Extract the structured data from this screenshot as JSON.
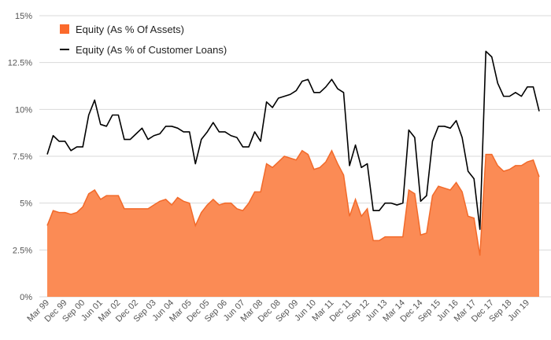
{
  "chart_data": {
    "type": "area",
    "y_ticks": [
      "0%",
      "2.5%",
      "5%",
      "7.5%",
      "10%",
      "12.5%",
      "15%"
    ],
    "y_tick_values": [
      0,
      2.5,
      5,
      7.5,
      10,
      12.5,
      15
    ],
    "ylim": [
      0,
      15
    ],
    "x_labels": [
      "Mar 99",
      "Dec 99",
      "Sep 00",
      "Jun 01",
      "Mar 02",
      "Dec 02",
      "Sep 03",
      "Jun 04",
      "Mar 05",
      "Dec 05",
      "Sep 06",
      "Jun 07",
      "Mar 08",
      "Dec 08",
      "Sep 09",
      "Jun 10",
      "Mar 11",
      "Dec 11",
      "Sep 12",
      "Jun 13",
      "Mar 14",
      "Dec 14",
      "Sep 15",
      "Jun 16",
      "Mar 17",
      "Dec 17",
      "Sep 18",
      "Jun 19"
    ],
    "series": [
      {
        "name": "Equity (As % Of Assets)",
        "kind": "area",
        "color": "#fb8b55",
        "values": [
          3.8,
          4.6,
          4.5,
          4.5,
          4.4,
          4.5,
          4.8,
          5.5,
          5.7,
          5.2,
          5.4,
          5.4,
          5.4,
          4.7,
          4.7,
          4.7,
          4.7,
          4.7,
          4.9,
          5.1,
          5.2,
          4.9,
          5.3,
          5.1,
          5.0,
          3.8,
          4.5,
          4.9,
          5.2,
          4.9,
          5.0,
          5.0,
          4.7,
          4.6,
          5.0,
          5.6,
          5.6,
          7.1,
          6.9,
          7.2,
          7.5,
          7.4,
          7.3,
          7.8,
          7.6,
          6.8,
          6.9,
          7.2,
          7.8,
          7.1,
          6.5,
          4.3,
          5.2,
          4.3,
          4.7,
          3.0,
          3.0,
          3.2,
          3.2,
          3.2,
          3.2,
          5.7,
          5.5,
          3.3,
          3.4,
          5.4,
          5.9,
          5.8,
          5.7,
          6.1,
          5.6,
          4.3,
          4.2,
          2.2,
          7.6,
          7.6,
          7.0,
          6.7,
          6.8,
          7.0,
          7.0,
          7.2,
          7.3,
          6.4
        ]
      },
      {
        "name": "Equity (As % of Customer Loans)",
        "kind": "line",
        "color": "#000000",
        "values": [
          7.6,
          8.6,
          8.3,
          8.3,
          7.8,
          8.0,
          8.0,
          9.7,
          10.5,
          9.2,
          9.1,
          9.7,
          9.7,
          8.4,
          8.4,
          8.7,
          9.0,
          8.4,
          8.6,
          8.7,
          9.1,
          9.1,
          9.0,
          8.8,
          8.8,
          7.1,
          8.4,
          8.8,
          9.3,
          8.8,
          8.8,
          8.6,
          8.5,
          8.0,
          8.0,
          8.8,
          8.3,
          10.4,
          10.1,
          10.6,
          10.7,
          10.8,
          11.0,
          11.5,
          11.6,
          10.9,
          10.9,
          11.2,
          11.6,
          11.1,
          10.9,
          7.0,
          8.1,
          6.9,
          7.1,
          4.6,
          4.6,
          5.0,
          5.0,
          4.9,
          5.0,
          8.9,
          8.5,
          5.1,
          5.4,
          8.3,
          9.1,
          9.1,
          9.0,
          9.4,
          8.5,
          6.7,
          6.3,
          3.6,
          13.1,
          12.8,
          11.4,
          10.7,
          10.7,
          10.9,
          10.7,
          11.2,
          11.2,
          9.9
        ]
      }
    ],
    "grid": true,
    "legend_position": "top-left"
  }
}
